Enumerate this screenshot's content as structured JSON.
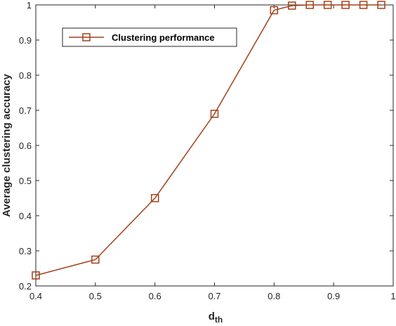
{
  "chart_data": {
    "type": "line",
    "x": [
      0.4,
      0.5,
      0.6,
      0.7,
      0.8,
      0.83,
      0.86,
      0.89,
      0.92,
      0.95,
      0.98
    ],
    "series": [
      {
        "name": "Clustering performance",
        "values": [
          0.23,
          0.275,
          0.45,
          0.69,
          0.985,
          0.998,
          1.0,
          1.0,
          1.0,
          1.0,
          1.0
        ],
        "color": "#A0421A",
        "marker": "square"
      }
    ],
    "xlabel": "d",
    "xlabel_subscript": "th",
    "ylabel": "Average clustering accuracy",
    "xlim": [
      0.4,
      1.0
    ],
    "ylim": [
      0.2,
      1.0
    ],
    "xticks": [
      "0.4",
      "0.5",
      "0.6",
      "0.7",
      "0.8",
      "0.9",
      "1"
    ],
    "yticks": [
      "0.2",
      "0.3",
      "0.4",
      "0.5",
      "0.6",
      "0.7",
      "0.8",
      "0.9",
      "1"
    ],
    "grid": false,
    "legend_position": "top-left"
  }
}
